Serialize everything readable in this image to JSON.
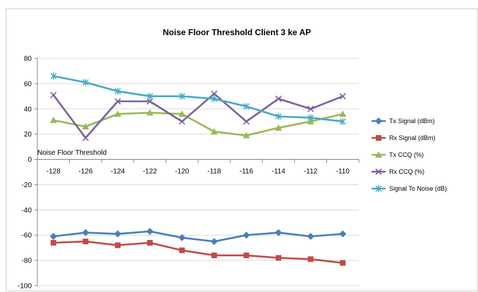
{
  "chart_data": {
    "type": "line",
    "title": "Noise Floor Threshold Client 3 ke AP",
    "xlabel": "",
    "ylabel": "",
    "annotation": "Noise Floor Threshold",
    "categories": [
      "-128",
      "-126",
      "-124",
      "-122",
      "-120",
      "-118",
      "-116",
      "-114",
      "-112",
      "-110"
    ],
    "ylim": [
      -100,
      80
    ],
    "yticks": [
      -100,
      -80,
      -60,
      -40,
      -20,
      0,
      20,
      40,
      60,
      80
    ],
    "grid": true,
    "legend_position": "right",
    "series": [
      {
        "name": "Tx Signal (dBm)",
        "color": "#4a7ebb",
        "marker": "diamond",
        "values": [
          -61,
          -58,
          -59,
          -57,
          -62,
          -65,
          -60,
          -58,
          -61,
          -59
        ]
      },
      {
        "name": "Rx Signal (dBm)",
        "color": "#be4b48",
        "marker": "square",
        "values": [
          -66,
          -65,
          -68,
          -66,
          -72,
          -76,
          -76,
          -78,
          -79,
          -82
        ]
      },
      {
        "name": "Tx CCQ (%)",
        "color": "#98b954",
        "marker": "triangle",
        "values": [
          31,
          26,
          36,
          37,
          36,
          22,
          19,
          25,
          30,
          36
        ]
      },
      {
        "name": "Rx CCQ (%)",
        "color": "#7d60a0",
        "marker": "x",
        "values": [
          51,
          17,
          46,
          46,
          30,
          52,
          30,
          48,
          40,
          50
        ]
      },
      {
        "name": "Signal To Noise (dB)",
        "color": "#46aac5",
        "marker": "star",
        "values": [
          66,
          61,
          54,
          50,
          50,
          48,
          42,
          34,
          33,
          30
        ]
      }
    ]
  }
}
